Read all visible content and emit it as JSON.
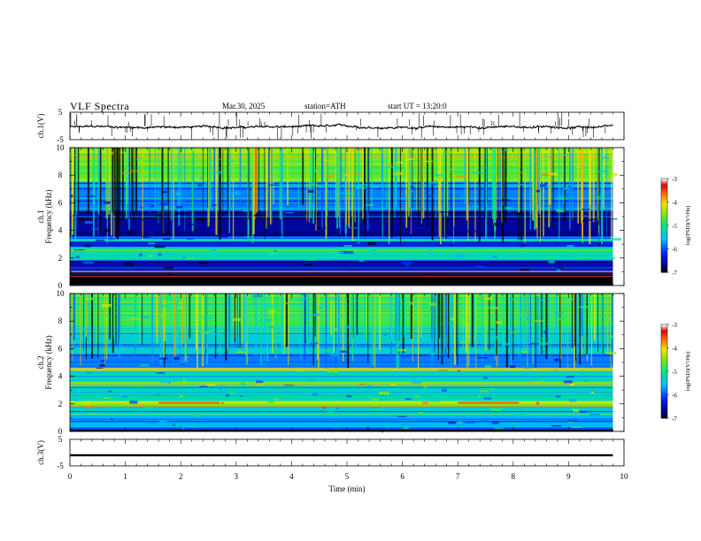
{
  "header": {
    "title": "VLF Spectra",
    "date": "Mar.30, 2025",
    "station": "station=ATH",
    "start_ut": "start UT = 13:20:0"
  },
  "chart_data": [
    {
      "type": "line",
      "name": "ch1-waveform",
      "ylabel": "ch.1(V)",
      "ylim": [
        -5,
        5
      ],
      "y_ticks": [
        "5",
        "-5"
      ],
      "xlim": [
        0,
        10
      ],
      "description_values": {
        "baseline_v": 0,
        "typical_spike_v": 3
      }
    },
    {
      "type": "heatmap",
      "name": "ch1-spectrogram",
      "ylabel": "ch.1 Frequency (kHz)",
      "ylim": [
        0,
        10
      ],
      "y_ticks": [
        "0",
        "2",
        "4",
        "6",
        "8",
        "10"
      ],
      "xlim": [
        0,
        10
      ],
      "data_end_min": 9.8,
      "colorbar": {
        "label": "log(PSD)(V²/Hz)",
        "range": [
          -7,
          -3
        ],
        "ticks": [
          "-3",
          "-4",
          "-5",
          "-6",
          "-7"
        ]
      },
      "bands": [
        {
          "f_khz": [
            0,
            0.8
          ],
          "level": -3.3
        },
        {
          "f_khz": [
            0.8,
            1.8
          ],
          "level": -6.5
        },
        {
          "f_khz": [
            1.8,
            2.8
          ],
          "level": -5.2
        },
        {
          "f_khz": [
            2.8,
            3.2
          ],
          "level": -6.3
        },
        {
          "f_khz": [
            3.2,
            3.6
          ],
          "level": -5.5
        },
        {
          "f_khz": [
            3.6,
            5.4
          ],
          "level": -6.6
        },
        {
          "f_khz": [
            5.4,
            7.5
          ],
          "level": -5.8
        },
        {
          "f_khz": [
            7.5,
            10
          ],
          "level": -4.6
        }
      ]
    },
    {
      "type": "heatmap",
      "name": "ch2-spectrogram",
      "ylabel": "ch.2 Frequency (kHz)",
      "ylim": [
        0,
        10
      ],
      "y_ticks": [
        "0",
        "2",
        "4",
        "6",
        "8",
        "10"
      ],
      "xlim": [
        0,
        10
      ],
      "data_end_min": 9.8,
      "colorbar": {
        "label": "log(PSD)(V²/Hz)",
        "range": [
          -7,
          -3
        ],
        "ticks": [
          "-3",
          "-4",
          "-5",
          "-6",
          "-7"
        ]
      },
      "bands": [
        {
          "f_khz": [
            0,
            1.2
          ],
          "level": -5.6
        },
        {
          "f_khz": [
            1.2,
            1.8
          ],
          "level": -5.3
        },
        {
          "f_khz": [
            1.8,
            2.2
          ],
          "level": -4.2
        },
        {
          "f_khz": [
            2.2,
            3.4
          ],
          "level": -5.2
        },
        {
          "f_khz": [
            3.4,
            3.6
          ],
          "level": -4.5
        },
        {
          "f_khz": [
            3.6,
            4.4
          ],
          "level": -5.4
        },
        {
          "f_khz": [
            4.4,
            4.6
          ],
          "level": -4.2
        },
        {
          "f_khz": [
            4.6,
            5.6
          ],
          "level": -5.8
        },
        {
          "f_khz": [
            5.6,
            7.5
          ],
          "level": -5.3
        },
        {
          "f_khz": [
            7.5,
            10
          ],
          "level": -4.8
        }
      ]
    },
    {
      "type": "line",
      "name": "ch3-waveform",
      "ylabel": "ch.3(V)",
      "ylim": [
        -5,
        5
      ],
      "y_ticks": [
        "5",
        "-5"
      ],
      "xlim": [
        0,
        10
      ],
      "xlabel": "Time (min)",
      "x_ticks": [
        "0",
        "1",
        "2",
        "3",
        "4",
        "5",
        "6",
        "7",
        "8",
        "9",
        "10"
      ],
      "description_values": {
        "baseline_v": -1
      }
    }
  ]
}
